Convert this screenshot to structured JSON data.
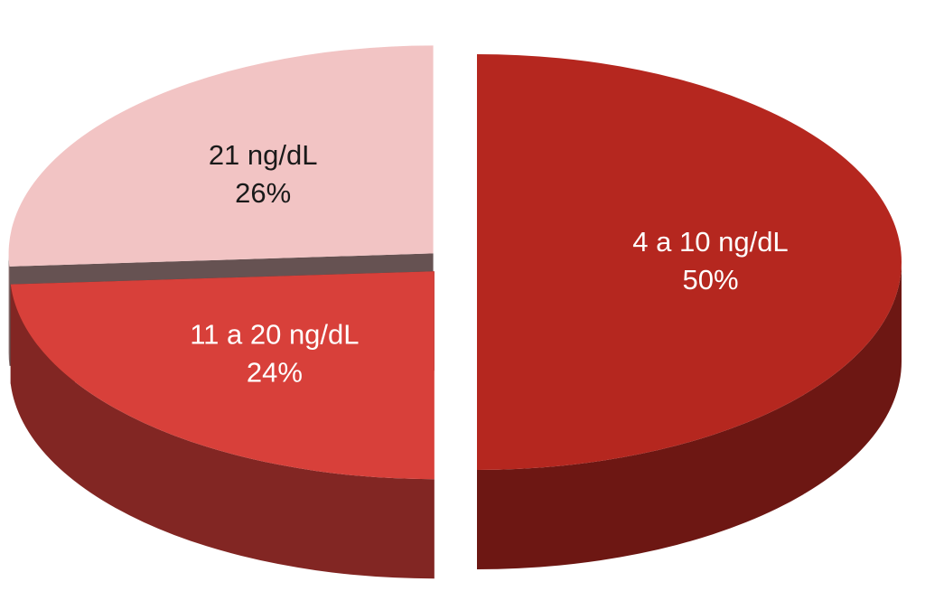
{
  "chart_data": {
    "type": "pie",
    "categories": [
      "4 a 10 ng/dL",
      "11 a 20 ng/dL",
      "21 ng/dL"
    ],
    "values": [
      50,
      24,
      26
    ],
    "value_labels": [
      "50%",
      "24%",
      "26%"
    ],
    "colors": [
      "#b5271f",
      "#d8403a",
      "#f2c4c4"
    ],
    "label_colors": [
      "#ffffff",
      "#ffffff",
      "#1a1a1a"
    ]
  }
}
